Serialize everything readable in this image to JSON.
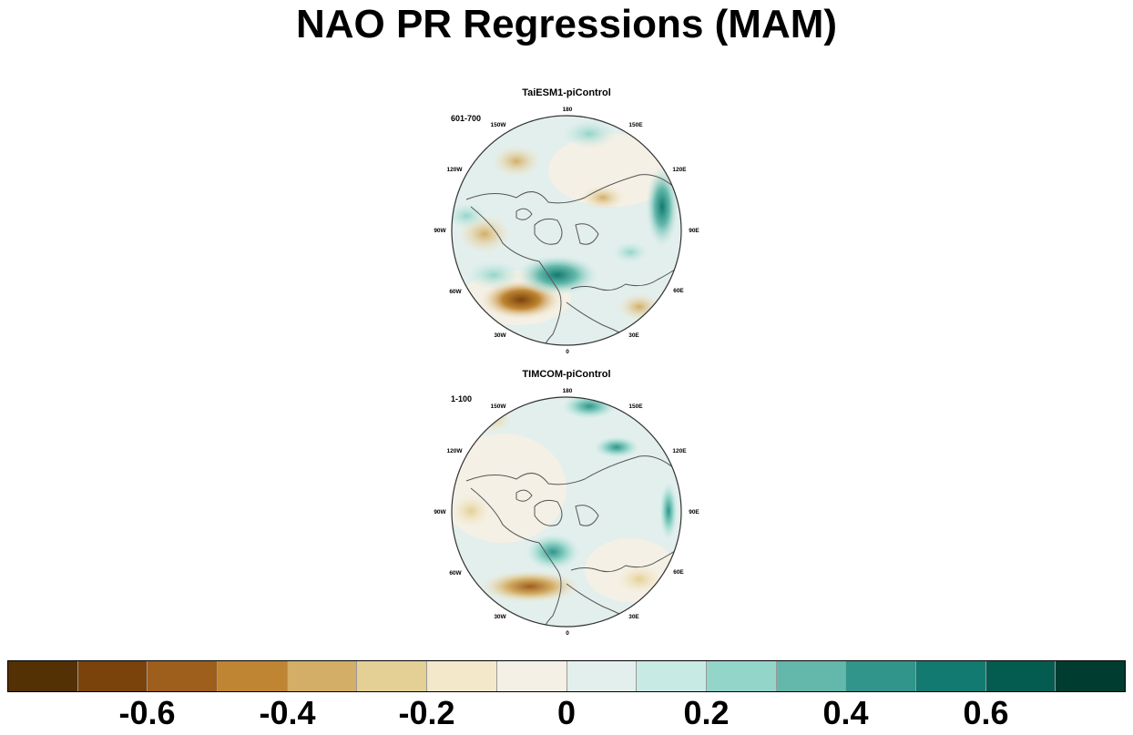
{
  "title": "NAO PR Regressions (MAM)",
  "panels": [
    {
      "title": "TaiESM1-piControl",
      "years": "601-700"
    },
    {
      "title": "TIMCOM-piControl",
      "years": "1-100"
    }
  ],
  "longitude_labels": [
    "180",
    "150E",
    "120E",
    "90E",
    "60E",
    "30E",
    "0",
    "30W",
    "60W",
    "90W",
    "120W",
    "150W"
  ],
  "colorbar": {
    "colors": [
      "#543005",
      "#7a430b",
      "#9e5e1c",
      "#bf8532",
      "#d3ae66",
      "#e4d095",
      "#f3e8c9",
      "#f4f0e5",
      "#e3efed",
      "#c8eae5",
      "#94d5c9",
      "#64b8ab",
      "#31958b",
      "#127a70",
      "#045c51",
      "#003c30"
    ],
    "labels": [
      "-0.6",
      "-0.4",
      "-0.2",
      "0",
      "0.2",
      "0.4",
      "0.6"
    ]
  },
  "colors": {
    "land_outline": "#555555",
    "background_field": "#e3efed"
  }
}
